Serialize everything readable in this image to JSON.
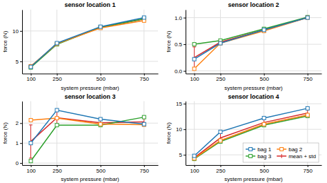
{
  "chart_data": [
    {
      "type": "line",
      "title": "sensor location 1",
      "xlabel": "system pressure (mbar)",
      "ylabel": "force (N)",
      "x": [
        100,
        250,
        500,
        750
      ],
      "series": [
        {
          "values": [
            4.1,
            8.0,
            10.7,
            12.2
          ],
          "marker": "square"
        },
        {
          "values": [
            4.2,
            7.9,
            10.5,
            11.7
          ],
          "marker": "square"
        },
        {
          "values": [
            4.0,
            7.8,
            10.6,
            12.0
          ],
          "marker": "square"
        },
        {
          "values": [
            4.1,
            7.9,
            10.6,
            11.97
          ],
          "errors": [
            0.08,
            0.08,
            0.08,
            0.22
          ]
        }
      ],
      "xlim": [
        50,
        830
      ],
      "xticks": [
        100,
        250,
        500,
        750
      ],
      "ylim": [
        3.0,
        13.5
      ],
      "yticks": [
        5,
        10
      ],
      "grid": true
    },
    {
      "type": "line",
      "title": "sensor location 2",
      "xlabel": "system pressure (mbar)",
      "ylabel": "force (N)",
      "x": [
        100,
        250,
        500,
        750
      ],
      "series": [
        {
          "values": [
            0.22,
            0.52,
            0.77,
            1.0
          ],
          "marker": "square"
        },
        {
          "values": [
            0.04,
            0.52,
            0.75,
            1.0
          ],
          "marker": "square"
        },
        {
          "values": [
            0.5,
            0.57,
            0.79,
            1.01
          ],
          "marker": "square"
        },
        {
          "values": [
            0.25,
            0.54,
            0.77,
            1.0
          ],
          "errors": [
            0.2,
            0.025,
            0.018,
            0.005
          ]
        }
      ],
      "xlim": [
        50,
        830
      ],
      "xticks": [
        100,
        250,
        500,
        750
      ],
      "ylim": [
        -0.05,
        1.15
      ],
      "yticks": [
        {
          "value": 0.0,
          "label": "0.0"
        },
        0.5,
        {
          "value": 1.0,
          "label": "1.0"
        }
      ],
      "grid": true
    },
    {
      "type": "line",
      "title": "sensor location 3",
      "xlabel": "system pressure (mbar)",
      "ylabel": "force (N)",
      "x": [
        100,
        250,
        500,
        750
      ],
      "series": [
        {
          "values": [
            1.0,
            2.65,
            2.2,
            1.95
          ],
          "marker": "square"
        },
        {
          "values": [
            2.15,
            2.25,
            1.95,
            1.92
          ],
          "marker": "square"
        },
        {
          "values": [
            0.1,
            1.9,
            1.9,
            2.3
          ],
          "marker": "square"
        },
        {
          "values": [
            1.08,
            2.27,
            2.02,
            2.06
          ],
          "errors": [
            0.83,
            0.31,
            0.13,
            0.17
          ]
        }
      ],
      "xlim": [
        50,
        830
      ],
      "xticks": [
        100,
        250,
        500,
        750
      ],
      "ylim": [
        -0.1,
        3.1
      ],
      "yticks": [
        0,
        1,
        2
      ],
      "grid": true
    },
    {
      "type": "line",
      "title": "sensor location 4",
      "xlabel": "system pressure (mbar)",
      "ylabel": "force (N)",
      "x": [
        100,
        250,
        500,
        750
      ],
      "series": [
        {
          "name": "bag 1",
          "values": [
            4.8,
            9.5,
            12.2,
            14.1
          ],
          "marker": "square"
        },
        {
          "name": "bag 2",
          "values": [
            4.3,
            7.8,
            11.0,
            12.8
          ],
          "marker": "square"
        },
        {
          "name": "bag 3",
          "values": [
            4.2,
            7.6,
            10.8,
            12.6
          ],
          "marker": "square"
        },
        {
          "name": "mean + std",
          "values": [
            4.43,
            8.3,
            11.33,
            13.17
          ],
          "errors": [
            0.26,
            0.85,
            0.59,
            0.63
          ]
        }
      ],
      "xlim": [
        50,
        830
      ],
      "xticks": [
        100,
        250,
        500,
        750
      ],
      "ylim": [
        3.0,
        15.5
      ],
      "yticks": [
        5,
        10,
        15
      ],
      "grid": true,
      "legend": "lower right"
    }
  ]
}
